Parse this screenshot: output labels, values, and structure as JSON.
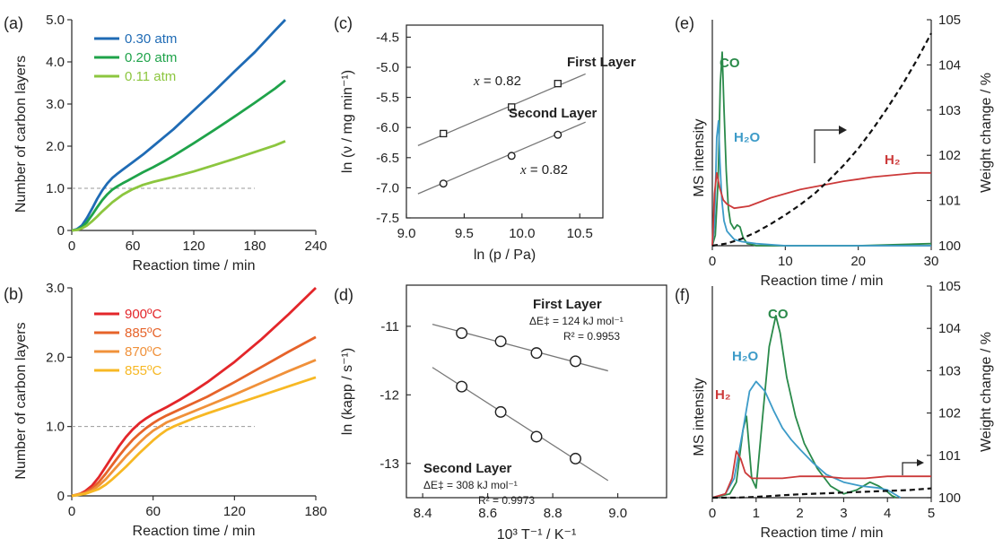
{
  "chart_data": [
    {
      "id": "a",
      "panel_label": "(a)",
      "type": "line",
      "xlabel": "Reaction time / min",
      "ylabel": "Number of carbon layers",
      "xlim": [
        0,
        240
      ],
      "ylim": [
        0,
        5.0
      ],
      "xticks": [
        "0",
        "60",
        "120",
        "180",
        "240"
      ],
      "yticks": [
        "0",
        "1.0",
        "2.0",
        "3.0",
        "4.0",
        "5.0"
      ],
      "legend_position": "top-left",
      "reference_line": {
        "y": 1.0,
        "x_end": 180,
        "style": "dashed"
      },
      "series": [
        {
          "name": "0.30 atm",
          "color": "#1f6bb5",
          "x": [
            0,
            5,
            10,
            15,
            20,
            25,
            30,
            35,
            40,
            45,
            50,
            60,
            70,
            80,
            90,
            100,
            120,
            140,
            160,
            180,
            200,
            210
          ],
          "y": [
            0,
            0.03,
            0.12,
            0.3,
            0.52,
            0.75,
            0.95,
            1.12,
            1.25,
            1.35,
            1.44,
            1.62,
            1.8,
            2.0,
            2.2,
            2.4,
            2.85,
            3.3,
            3.77,
            4.23,
            4.75,
            5.0
          ]
        },
        {
          "name": "0.20 atm",
          "color": "#1fa34a",
          "x": [
            0,
            5,
            10,
            15,
            20,
            25,
            30,
            35,
            40,
            45,
            50,
            55,
            60,
            70,
            80,
            90,
            100,
            120,
            140,
            160,
            180,
            200,
            210
          ],
          "y": [
            0,
            0.02,
            0.08,
            0.2,
            0.37,
            0.55,
            0.72,
            0.86,
            0.97,
            1.05,
            1.12,
            1.18,
            1.25,
            1.38,
            1.5,
            1.63,
            1.77,
            2.07,
            2.38,
            2.7,
            3.03,
            3.37,
            3.56
          ]
        },
        {
          "name": "0.11 atm",
          "color": "#8cc63f",
          "x": [
            0,
            5,
            10,
            15,
            20,
            25,
            30,
            40,
            50,
            60,
            70,
            80,
            90,
            100,
            120,
            140,
            160,
            180,
            200,
            210
          ],
          "y": [
            0,
            0.01,
            0.05,
            0.12,
            0.22,
            0.33,
            0.45,
            0.67,
            0.85,
            0.98,
            1.08,
            1.15,
            1.21,
            1.27,
            1.4,
            1.55,
            1.7,
            1.86,
            2.02,
            2.12
          ]
        }
      ]
    },
    {
      "id": "b",
      "panel_label": "(b)",
      "type": "line",
      "xlabel": "Reaction time / min",
      "ylabel": "Number of carbon layers",
      "xlim": [
        0,
        180
      ],
      "ylim": [
        0,
        3.0
      ],
      "xticks": [
        "0",
        "60",
        "120",
        "180"
      ],
      "yticks": [
        "0",
        "1.0",
        "2.0",
        "3.0"
      ],
      "legend_position": "top-left",
      "reference_line": {
        "y": 1.0,
        "x_end": 135,
        "style": "dashed"
      },
      "series": [
        {
          "name": "900ºC",
          "color": "#e3262a",
          "x": [
            0,
            5,
            10,
            15,
            20,
            25,
            30,
            35,
            40,
            45,
            50,
            55,
            60,
            70,
            80,
            90,
            100,
            120,
            140,
            160,
            180
          ],
          "y": [
            0,
            0.02,
            0.07,
            0.15,
            0.27,
            0.42,
            0.57,
            0.72,
            0.85,
            0.96,
            1.05,
            1.12,
            1.18,
            1.28,
            1.39,
            1.51,
            1.64,
            1.93,
            2.26,
            2.62,
            3.0
          ]
        },
        {
          "name": "885ºC",
          "color": "#e6632a",
          "x": [
            0,
            10,
            15,
            20,
            25,
            30,
            35,
            40,
            45,
            50,
            55,
            60,
            65,
            70,
            80,
            90,
            100,
            120,
            140,
            160,
            180
          ],
          "y": [
            0,
            0.05,
            0.11,
            0.2,
            0.32,
            0.45,
            0.58,
            0.7,
            0.81,
            0.9,
            0.98,
            1.05,
            1.11,
            1.16,
            1.25,
            1.34,
            1.43,
            1.64,
            1.86,
            2.08,
            2.29
          ]
        },
        {
          "name": "870ºC",
          "color": "#f0913a",
          "x": [
            0,
            10,
            15,
            20,
            25,
            30,
            35,
            40,
            45,
            50,
            55,
            60,
            65,
            70,
            75,
            80,
            90,
            100,
            120,
            140,
            160,
            180
          ],
          "y": [
            0,
            0.04,
            0.08,
            0.15,
            0.24,
            0.35,
            0.46,
            0.57,
            0.67,
            0.77,
            0.86,
            0.94,
            1.0,
            1.06,
            1.1,
            1.14,
            1.22,
            1.3,
            1.46,
            1.63,
            1.8,
            1.96
          ]
        },
        {
          "name": "855ºC",
          "color": "#f7b824",
          "x": [
            0,
            10,
            20,
            25,
            30,
            35,
            40,
            45,
            50,
            55,
            60,
            65,
            70,
            75,
            80,
            90,
            100,
            120,
            140,
            160,
            180
          ],
          "y": [
            0,
            0.03,
            0.1,
            0.16,
            0.24,
            0.33,
            0.42,
            0.52,
            0.62,
            0.71,
            0.8,
            0.88,
            0.95,
            1.0,
            1.04,
            1.12,
            1.19,
            1.32,
            1.45,
            1.58,
            1.71
          ]
        }
      ]
    },
    {
      "id": "c",
      "panel_label": "(c)",
      "type": "scatter",
      "xlabel": "ln (p / Pa)",
      "ylabel": "ln (ν / mg min⁻¹)",
      "xlim": [
        9.0,
        10.7
      ],
      "ylim": [
        -7.5,
        -4.3
      ],
      "xticks": [
        "9.0",
        "9.5",
        "10.0",
        "10.5"
      ],
      "yticks": [
        "-4.5",
        "-5.0",
        "-5.5",
        "-6.0",
        "-6.5",
        "-7.0",
        "-7.5"
      ],
      "series": [
        {
          "name": "First Layer",
          "marker": "square",
          "x": [
            9.32,
            9.91,
            10.31
          ],
          "y": [
            -6.1,
            -5.66,
            -5.27
          ],
          "fit_x": [
            9.1,
            10.55
          ],
          "fit_y": [
            -6.3,
            -5.11
          ],
          "annotation": "x = 0.82"
        },
        {
          "name": "Second Layer",
          "marker": "circle",
          "x": [
            9.32,
            9.91,
            10.31
          ],
          "y": [
            -6.93,
            -6.47,
            -6.12
          ],
          "fit_x": [
            9.1,
            10.55
          ],
          "fit_y": [
            -7.1,
            -5.91
          ],
          "annotation": "x = 0.82"
        }
      ]
    },
    {
      "id": "d",
      "panel_label": "(d)",
      "type": "scatter",
      "xlabel": "10³ T⁻¹ / K⁻¹",
      "ylabel": "ln (kapp / s⁻¹)",
      "xlim": [
        8.35,
        9.15
      ],
      "ylim": [
        -13.5,
        -10.4
      ],
      "xticks": [
        "8.4",
        "8.6",
        "8.8",
        "9.0"
      ],
      "yticks": [
        "-11",
        "-12",
        "-13"
      ],
      "series": [
        {
          "name": "First Layer",
          "marker": "circle",
          "x": [
            8.52,
            8.64,
            8.75,
            8.87
          ],
          "y": [
            -11.1,
            -11.22,
            -11.39,
            -11.51
          ],
          "fit_x": [
            8.43,
            8.97
          ],
          "fit_y": [
            -10.97,
            -11.65
          ],
          "energy": "ΔE‡ = 124 kJ mol⁻¹",
          "r2": "R² = 0.9953"
        },
        {
          "name": "Second Layer",
          "marker": "circle",
          "x": [
            8.52,
            8.64,
            8.75,
            8.87
          ],
          "y": [
            -11.88,
            -12.25,
            -12.61,
            -12.93
          ],
          "fit_x": [
            8.43,
            8.97
          ],
          "fit_y": [
            -11.6,
            -13.25
          ],
          "energy": "ΔE‡ = 308 kJ mol⁻¹",
          "r2": "R² = 0.9973"
        }
      ]
    },
    {
      "id": "e",
      "panel_label": "(e)",
      "type": "line",
      "xlabel": "Reaction time / min",
      "ylabel": "MS intensity",
      "y2label": "Weight change / %",
      "xlim": [
        0,
        30
      ],
      "y2lim": [
        100,
        105
      ],
      "xticks": [
        "0",
        "10",
        "20",
        "30"
      ],
      "y2ticks": [
        "100",
        "101",
        "102",
        "103",
        "104",
        "105"
      ],
      "series": [
        {
          "name": "CO",
          "color": "#2a8a4a",
          "axis": "left",
          "x": [
            0,
            0.4,
            0.8,
            1.1,
            1.35,
            1.6,
            1.9,
            2.2,
            2.5,
            3,
            3.4,
            3.8,
            4.2,
            4.8,
            5.5,
            6,
            8,
            10,
            20,
            30
          ],
          "y": [
            0,
            0.05,
            0.32,
            0.78,
            0.93,
            0.66,
            0.36,
            0.18,
            0.11,
            0.08,
            0.1,
            0.09,
            0.04,
            0.01,
            0.005,
            0,
            0,
            0,
            0,
            0.01
          ]
        },
        {
          "name": "H₂O",
          "color": "#3d9bc8",
          "axis": "left",
          "x": [
            0,
            0.3,
            0.6,
            0.85,
            1.05,
            1.3,
            1.6,
            2,
            2.5,
            3,
            4,
            6,
            10,
            20,
            30
          ],
          "y": [
            0,
            0.1,
            0.52,
            0.6,
            0.4,
            0.22,
            0.12,
            0.07,
            0.05,
            0.03,
            0.02,
            0.01,
            0,
            0,
            0
          ]
        },
        {
          "name": "H₂",
          "color": "#cc3a3a",
          "axis": "left",
          "x": [
            0,
            0.3,
            0.6,
            1,
            1.5,
            2,
            3,
            5,
            8,
            10,
            12,
            15,
            18,
            20,
            22,
            25,
            28,
            30
          ],
          "y": [
            0,
            0.25,
            0.35,
            0.28,
            0.22,
            0.2,
            0.18,
            0.19,
            0.23,
            0.25,
            0.27,
            0.29,
            0.31,
            0.32,
            0.33,
            0.34,
            0.35,
            0.35
          ]
        },
        {
          "name": "Weight change",
          "color": "#111111",
          "axis": "right",
          "style": "dashed",
          "x": [
            0,
            2,
            4,
            6,
            8,
            10,
            12,
            14,
            16,
            18,
            20,
            22,
            24,
            26,
            28,
            30
          ],
          "y": [
            100,
            100.05,
            100.15,
            100.3,
            100.48,
            100.68,
            100.9,
            101.15,
            101.45,
            101.78,
            102.15,
            102.58,
            103.05,
            103.55,
            104.1,
            104.7
          ]
        }
      ]
    },
    {
      "id": "f",
      "panel_label": "(f)",
      "type": "line",
      "xlabel": "Reaction time / min",
      "ylabel": "MS intensity",
      "y2label": "Weight change / %",
      "xlim": [
        0,
        5
      ],
      "y2lim": [
        100,
        105
      ],
      "xticks": [
        "0",
        "1",
        "2",
        "3",
        "4",
        "5"
      ],
      "y2ticks": [
        "100",
        "101",
        "102",
        "103",
        "104",
        "105"
      ],
      "series": [
        {
          "name": "CO",
          "color": "#2a8a4a",
          "axis": "left",
          "x": [
            0,
            0.4,
            0.55,
            0.7,
            0.78,
            0.9,
            1.0,
            1.15,
            1.3,
            1.45,
            1.55,
            1.7,
            1.9,
            2.1,
            2.4,
            2.7,
            3,
            3.3,
            3.6,
            3.8,
            4,
            4.1,
            4.2
          ],
          "y": [
            0,
            0.02,
            0.08,
            0.35,
            0.42,
            0.1,
            0.05,
            0.42,
            0.78,
            0.94,
            0.85,
            0.62,
            0.42,
            0.28,
            0.15,
            0.06,
            0.02,
            0.04,
            0.08,
            0.06,
            0.03,
            0.01,
            0
          ]
        },
        {
          "name": "H₂O",
          "color": "#3d9bc8",
          "axis": "left",
          "x": [
            0,
            0.3,
            0.5,
            0.7,
            0.85,
            1.0,
            1.2,
            1.4,
            1.6,
            1.8,
            2,
            2.3,
            2.6,
            3,
            3.4,
            3.8,
            4,
            4.3
          ],
          "y": [
            0,
            0.02,
            0.1,
            0.35,
            0.55,
            0.6,
            0.55,
            0.45,
            0.36,
            0.3,
            0.25,
            0.18,
            0.12,
            0.08,
            0.06,
            0.05,
            0.04,
            0
          ]
        },
        {
          "name": "H₂",
          "color": "#cc3a3a",
          "axis": "left",
          "x": [
            0,
            0.3,
            0.45,
            0.55,
            0.65,
            0.75,
            0.9,
            1.2,
            1.6,
            2,
            2.5,
            3,
            3.5,
            4,
            4.5,
            5
          ],
          "y": [
            0,
            0.02,
            0.1,
            0.24,
            0.2,
            0.13,
            0.1,
            0.1,
            0.1,
            0.11,
            0.11,
            0.1,
            0.1,
            0.11,
            0.11,
            0.11
          ]
        },
        {
          "name": "Weight change",
          "color": "#111111",
          "axis": "right",
          "style": "dashed",
          "x": [
            0,
            0.5,
            1,
            1.5,
            2,
            2.5,
            3,
            3.5,
            4,
            4.5,
            5
          ],
          "y": [
            100,
            100,
            100.02,
            100.05,
            100.08,
            100.1,
            100.12,
            100.14,
            100.16,
            100.18,
            100.22
          ]
        }
      ]
    }
  ],
  "labels": {
    "c_first": "First Layer",
    "c_second": "Second Layer",
    "c_x1": "x",
    "c_x1_val": " = 0.82",
    "c_x2": "x",
    "c_x2_val": " = 0.82",
    "d_first": "First Layer",
    "d_first_e": "ΔE‡ = 124 kJ mol⁻¹",
    "d_first_r": "R² = 0.9953",
    "d_second": "Second Layer",
    "d_second_e": "ΔE‡ = 308 kJ mol⁻¹",
    "d_second_r": "R² = 0.9973",
    "e_co": "CO",
    "e_h2o": "H₂O",
    "e_h2": "H₂",
    "f_co": "CO",
    "f_h2o": "H₂O",
    "f_h2": "H₂"
  }
}
